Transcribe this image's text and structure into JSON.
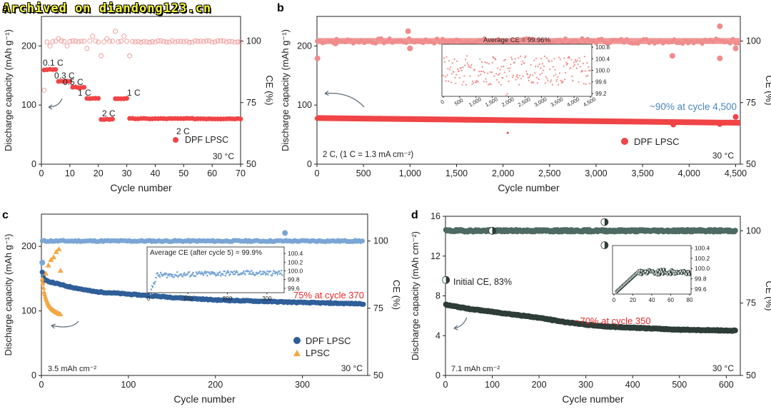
{
  "watermark": "Archived on diandong123.cn",
  "colors": {
    "red_filled": "#f04446",
    "red_open": "#f08c8c",
    "blue_filled": "#2f5f99",
    "blue_light": "#7aa6d6",
    "orange": "#f5a742",
    "dark_green": "#2e3d38",
    "dark_green_light": "#4d6a63",
    "annotation_red": "#e8282a",
    "annotation_blue": "#4a86c5",
    "arrow": "#5a6b78"
  },
  "chart_data": [
    {
      "panel": "a",
      "type": "scatter",
      "xlabel": "Cycle number",
      "ylabel": "Discharge capacity (mAh g⁻¹)",
      "y2label": "CE (%)",
      "xlim": [
        0,
        70
      ],
      "ylim": [
        0,
        250
      ],
      "y2lim": [
        50,
        110
      ],
      "xticks": [
        0,
        10,
        20,
        30,
        40,
        50,
        60,
        70
      ],
      "yticks": [
        0,
        100,
        200
      ],
      "y2ticks": [
        50,
        75,
        100
      ],
      "temperature": "30 °C",
      "legend": [
        "DPF LPSC"
      ],
      "rate_segments": [
        {
          "label": "0.1 C",
          "start": 1,
          "end": 5,
          "capacity": 160
        },
        {
          "label": "0.3 C",
          "start": 6,
          "end": 10,
          "capacity": 140
        },
        {
          "label": "0.5 C",
          "start": 11,
          "end": 15,
          "capacity": 130
        },
        {
          "label": "1 C",
          "start": 16,
          "end": 20,
          "capacity": 111
        },
        {
          "label": "2 C",
          "start": 21,
          "end": 25,
          "capacity": 76
        },
        {
          "label": "1 C",
          "start": 26,
          "end": 30,
          "capacity": 111
        },
        {
          "label": "2 C",
          "start": 31,
          "end": 70,
          "capacity": 77
        }
      ],
      "ce_outliers": [
        [
          1,
          80
        ],
        [
          3,
          98
        ],
        [
          6,
          101
        ],
        [
          9,
          98
        ],
        [
          16,
          97
        ],
        [
          18,
          102
        ],
        [
          21,
          94
        ],
        [
          23,
          101
        ],
        [
          26,
          104
        ],
        [
          29,
          102
        ],
        [
          31,
          94
        ]
      ],
      "ce_baseline": 99.8
    },
    {
      "panel": "b",
      "type": "scatter",
      "xlabel": "Cycle number",
      "ylabel": "Discharge capacity (mAh g⁻¹)",
      "y2label": "CE (%)",
      "xlim": [
        0,
        4550
      ],
      "ylim": [
        0,
        250
      ],
      "y2lim": [
        50,
        110
      ],
      "xticks": [
        0,
        500,
        1000,
        1500,
        2000,
        2500,
        3000,
        3500,
        4000,
        4500
      ],
      "xticklabels": [
        "0",
        "500",
        "1,000",
        "1,500",
        "2,000",
        "2,500",
        "3,000",
        "3,500",
        "4,000",
        "4,500"
      ],
      "yticks": [
        0,
        100,
        200
      ],
      "y2ticks": [
        50,
        75,
        100
      ],
      "temperature": "30 °C",
      "condition": "2 C, (1 C = 1.3 mA cm⁻²)",
      "legend": [
        "DPF LPSC"
      ],
      "annotation": "~90% at cycle 4,500",
      "capacity_start": 78,
      "capacity_end": 70,
      "ce_baseline": 100,
      "ce_outliers": [
        [
          5,
          93
        ],
        [
          200,
          99
        ],
        [
          980,
          104
        ],
        [
          1000,
          97
        ],
        [
          2030,
          99
        ],
        [
          3820,
          94
        ],
        [
          4330,
          106
        ],
        [
          4330,
          93
        ],
        [
          4500,
          97
        ]
      ],
      "cap_outliers": [
        [
          2050,
          53
        ],
        [
          4500,
          80
        ],
        [
          3830,
          67
        ],
        [
          4330,
          68
        ]
      ],
      "inset": {
        "title": "Average CE = 99.96%",
        "xlim": [
          0,
          4500
        ],
        "ylim": [
          99.1,
          100.9
        ],
        "xticks": [
          0,
          500,
          1000,
          1500,
          2000,
          2500,
          3000,
          3500,
          4000,
          4500
        ],
        "xticklabels": [
          "0",
          "500",
          "1,000",
          "1,500",
          "2,000",
          "2,500",
          "3,000",
          "3,500",
          "4,000",
          "4,500"
        ],
        "yticks": [
          99.2,
          99.6,
          100.0,
          100.4,
          100.8
        ],
        "yticklabels": [
          "99.2",
          "99.6",
          "100.0",
          "100.4",
          "100.8"
        ]
      }
    },
    {
      "panel": "c",
      "type": "scatter",
      "xlabel": "Cycle number",
      "ylabel": "Discharge capacity (mAh g⁻¹)",
      "y2label": "CE (%)",
      "xlim": [
        0,
        375
      ],
      "ylim": [
        0,
        250
      ],
      "y2lim": [
        50,
        110
      ],
      "xticks": [
        0,
        100,
        200,
        300
      ],
      "yticks": [
        0,
        100,
        200
      ],
      "y2ticks": [
        50,
        75,
        100
      ],
      "temperature": "30 °C",
      "condition": "3.5 mAh cm⁻²",
      "legend": [
        "DPF LPSC",
        "LPSC"
      ],
      "annotation": "75% at cycle 370",
      "series": [
        {
          "name": "DPF LPSC",
          "capacity_points": [
            [
              1,
              160
            ],
            [
              3,
              148
            ],
            [
              10,
              145
            ],
            [
              30,
              138
            ],
            [
              60,
              130
            ],
            [
              100,
              126
            ],
            [
              150,
              121
            ],
            [
              200,
              117
            ],
            [
              250,
              115
            ],
            [
              300,
              113
            ],
            [
              370,
              111
            ]
          ],
          "ce_baseline": 100
        },
        {
          "name": "LPSC",
          "capacity_points": [
            [
              1,
              150
            ],
            [
              3,
              130
            ],
            [
              5,
              120
            ],
            [
              8,
              110
            ],
            [
              12,
              103
            ],
            [
              16,
              99
            ],
            [
              20,
              96
            ],
            [
              22,
              95
            ]
          ],
          "ce_points": [
            [
              2,
              85
            ],
            [
              5,
              88
            ],
            [
              8,
              91
            ],
            [
              11,
              93
            ],
            [
              14,
              94
            ],
            [
              17,
              96
            ],
            [
              20,
              97
            ],
            [
              22,
              89
            ]
          ]
        }
      ],
      "inset": {
        "title": "Average CE (after cycle 5) = 99.9%",
        "xlim": [
          0,
          340
        ],
        "ylim": [
          99.5,
          100.55
        ],
        "xticks": [
          0,
          100,
          200,
          300
        ],
        "yticks": [
          99.6,
          99.8,
          100.0,
          100.2,
          100.4
        ],
        "yticklabels": [
          "99.6",
          "99.8",
          "100.0",
          "100.2",
          "100.4"
        ]
      }
    },
    {
      "panel": "d",
      "type": "scatter",
      "xlabel": "Cycle number",
      "ylabel": "Discharge capacity (mAh cm⁻²)",
      "y2label": "CE (%)",
      "xlim": [
        0,
        630
      ],
      "ylim": [
        0,
        16
      ],
      "y2lim": [
        50,
        105
      ],
      "xticks": [
        0,
        100,
        200,
        300,
        400,
        500,
        600
      ],
      "yticks": [
        0,
        4,
        8,
        12,
        16
      ],
      "y2ticks": [
        50,
        75,
        100
      ],
      "temperature": "30 °C",
      "condition": "7.1 mAh cm⁻²",
      "initial_ce": "Initial CE, 83%",
      "annotation": "~70% at cycle 350",
      "capacity_points": [
        [
          1,
          7.1
        ],
        [
          50,
          6.7
        ],
        [
          100,
          6.4
        ],
        [
          150,
          6.1
        ],
        [
          200,
          5.8
        ],
        [
          250,
          5.4
        ],
        [
          300,
          5.1
        ],
        [
          350,
          4.9
        ],
        [
          400,
          4.8
        ],
        [
          500,
          4.6
        ],
        [
          620,
          4.5
        ]
      ],
      "ce_baseline": 100,
      "ce_outliers": [
        [
          1,
          83
        ],
        [
          100,
          100
        ],
        [
          340,
          103
        ],
        [
          340,
          95
        ]
      ],
      "inset": {
        "xlim": [
          0,
          80
        ],
        "ylim": [
          99.5,
          100.45
        ],
        "xticks": [
          0,
          20,
          40,
          60,
          80
        ],
        "xticklabels": [
          "0",
          "20",
          "40",
          "60",
          "80"
        ],
        "yticks": [
          99.6,
          99.8,
          100.0,
          100.2,
          100.4
        ],
        "yticklabels": [
          "99.6",
          "99.8",
          "100.0",
          "100.2",
          "100.4"
        ]
      }
    }
  ]
}
